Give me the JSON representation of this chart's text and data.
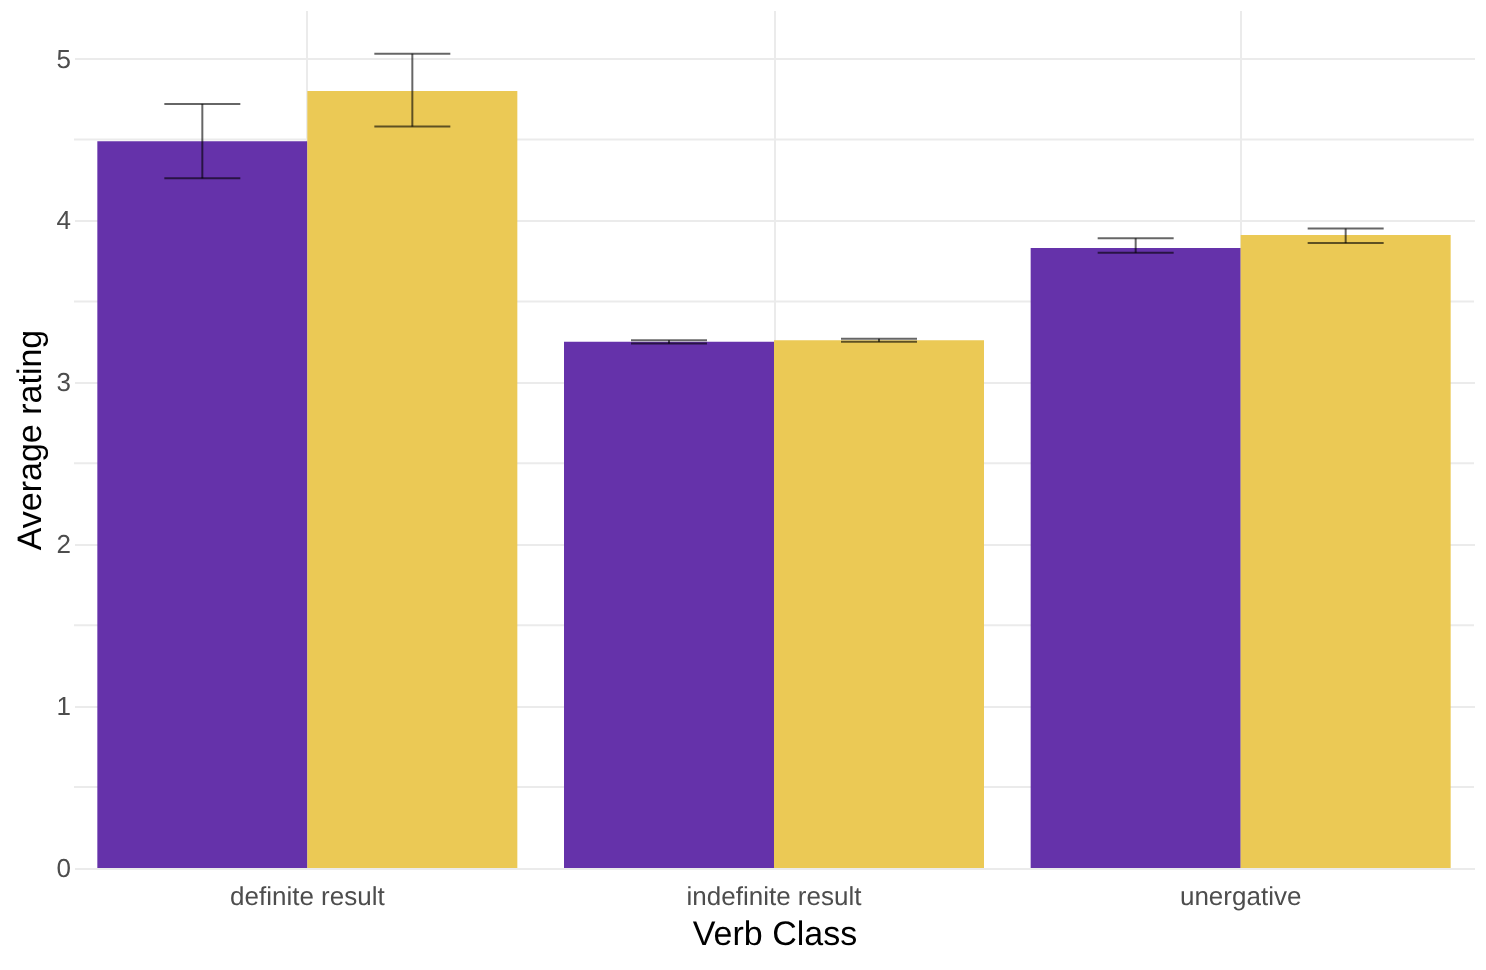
{
  "chart_data": {
    "type": "bar",
    "xlabel": "Verb Class",
    "ylabel": "Average rating",
    "categories": [
      "definite result",
      "indefinite result",
      "unergative"
    ],
    "series": [
      {
        "color": "#6532aa",
        "values": [
          4.49,
          3.25,
          3.83
        ],
        "errors": [
          [
            4.26,
            4.72
          ],
          [
            3.24,
            3.26
          ],
          [
            3.8,
            3.89
          ]
        ]
      },
      {
        "color": "#ebc955",
        "values": [
          4.8,
          3.26,
          3.91
        ],
        "errors": [
          [
            4.58,
            5.03
          ],
          [
            3.25,
            3.27
          ],
          [
            3.86,
            3.95
          ]
        ]
      }
    ],
    "ylim": [
      0,
      5.3
    ],
    "yticks": [
      0,
      {
        "value": 0.5,
        "label": null
      },
      1,
      {
        "value": 1.5,
        "label": null
      },
      2,
      {
        "value": 2.5,
        "label": null
      },
      3,
      {
        "value": 3.5,
        "label": null
      },
      4,
      {
        "value": 4.5,
        "label": null
      },
      5
    ],
    "grid": true,
    "legend": false
  }
}
